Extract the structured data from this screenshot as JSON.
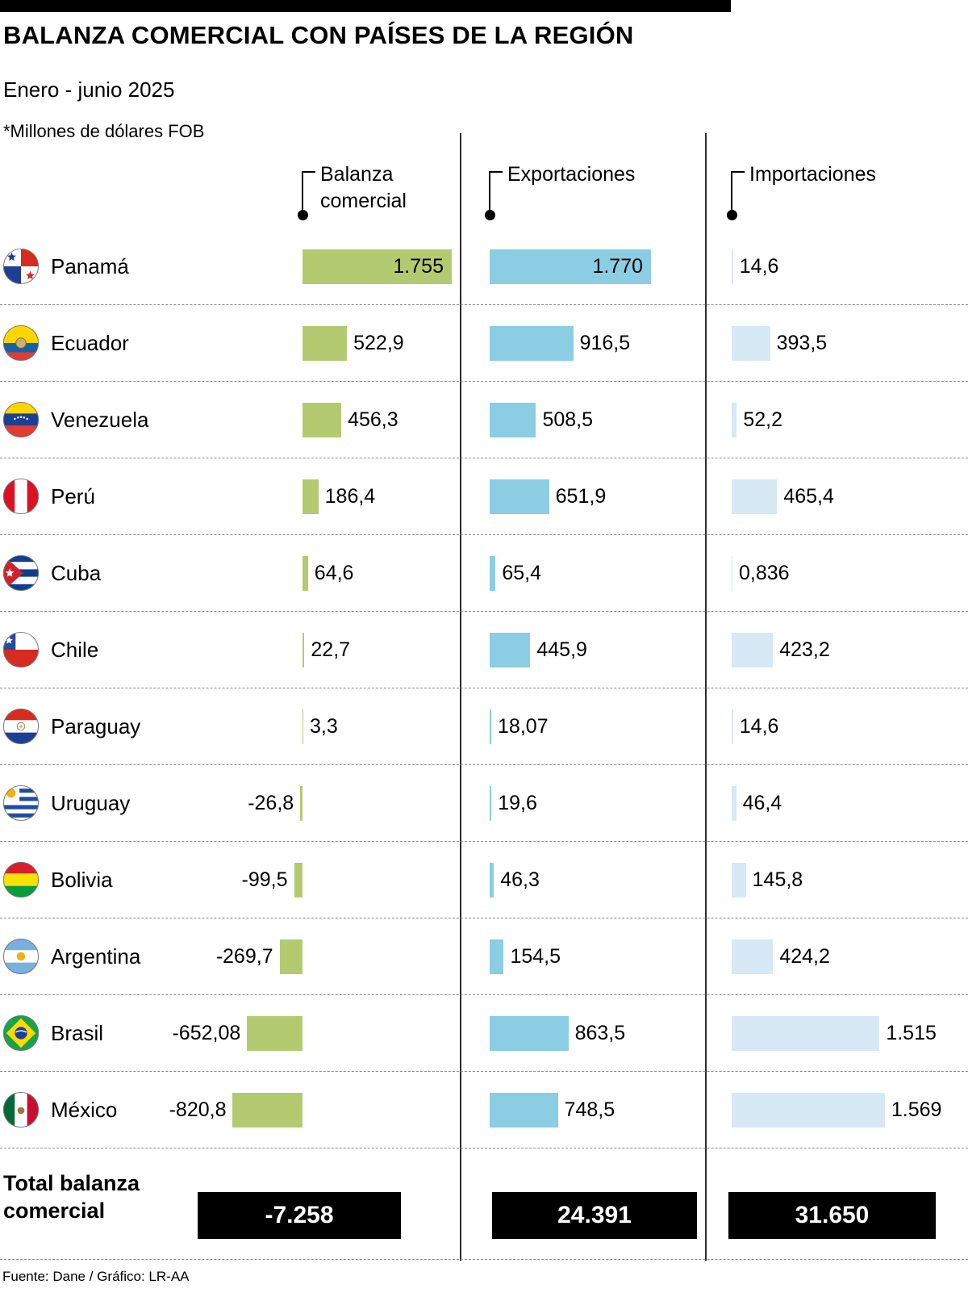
{
  "header": {
    "title": "BALANZA COMERCIAL CON PAÍSES DE LA REGIÓN",
    "subtitle": "Enero - junio 2025",
    "unit_note": "*Millones de dólares FOB"
  },
  "columns": [
    {
      "label": "Balanza comercial",
      "lines": [
        "Balanza",
        "comercial"
      ]
    },
    {
      "label": "Exportaciones",
      "lines": [
        "Exportaciones"
      ]
    },
    {
      "label": "Importaciones",
      "lines": [
        "Importaciones"
      ]
    }
  ],
  "chart_data": {
    "type": "bar",
    "title": "Balanza comercial con países de la región",
    "period": "Enero - junio 2025",
    "unit": "Millones de dólares FOB",
    "orientation": "horizontal",
    "categories": [
      "Panamá",
      "Ecuador",
      "Venezuela",
      "Perú",
      "Cuba",
      "Chile",
      "Paraguay",
      "Uruguay",
      "Bolivia",
      "Argentina",
      "Brasil",
      "México"
    ],
    "flags": [
      "panama",
      "ecuador",
      "venezuela",
      "peru",
      "cuba",
      "chile",
      "paraguay",
      "uruguay",
      "bolivia",
      "argentina",
      "brasil",
      "mexico"
    ],
    "series": [
      {
        "name": "Balanza comercial",
        "color": "#b4ca70",
        "values": [
          1755,
          522.9,
          456.3,
          186.4,
          64.6,
          22.7,
          3.3,
          -26.8,
          -99.5,
          -269.7,
          -652.08,
          -820.8
        ],
        "labels": [
          "1.755",
          "522,9",
          "456,3",
          "186,4",
          "64,6",
          "22,7",
          "3,3",
          "-26,8",
          "-99,5",
          "-269,7",
          "-652,08",
          "-820,8"
        ]
      },
      {
        "name": "Exportaciones",
        "color": "#8bcde2",
        "values": [
          1770,
          916.5,
          508.5,
          651.9,
          65.4,
          445.9,
          18.07,
          19.6,
          46.3,
          154.5,
          863.5,
          748.5
        ],
        "labels": [
          "1.770",
          "916,5",
          "508,5",
          "651,9",
          "65,4",
          "445,9",
          "18,07",
          "19,6",
          "46,3",
          "154,5",
          "863,5",
          "748,5"
        ]
      },
      {
        "name": "Importaciones",
        "color": "#d6e9f4",
        "values": [
          14.6,
          393.5,
          52.2,
          465.4,
          0.836,
          423.2,
          14.6,
          46.4,
          145.8,
          424.2,
          1515,
          1569
        ],
        "labels": [
          "14,6",
          "393,5",
          "52,2",
          "465,4",
          "0,836",
          "423,2",
          "14,6",
          "46,4",
          "145,8",
          "424,2",
          "1.515",
          "1.569"
        ]
      }
    ],
    "totals": {
      "label": "Total balanza comercial",
      "values": [
        -7258,
        24391,
        31650
      ],
      "labels": [
        "-7.258",
        "24.391",
        "31.650"
      ]
    }
  },
  "footer": {
    "source": "Fuente: Dane / Gráfico: LR-AA"
  }
}
